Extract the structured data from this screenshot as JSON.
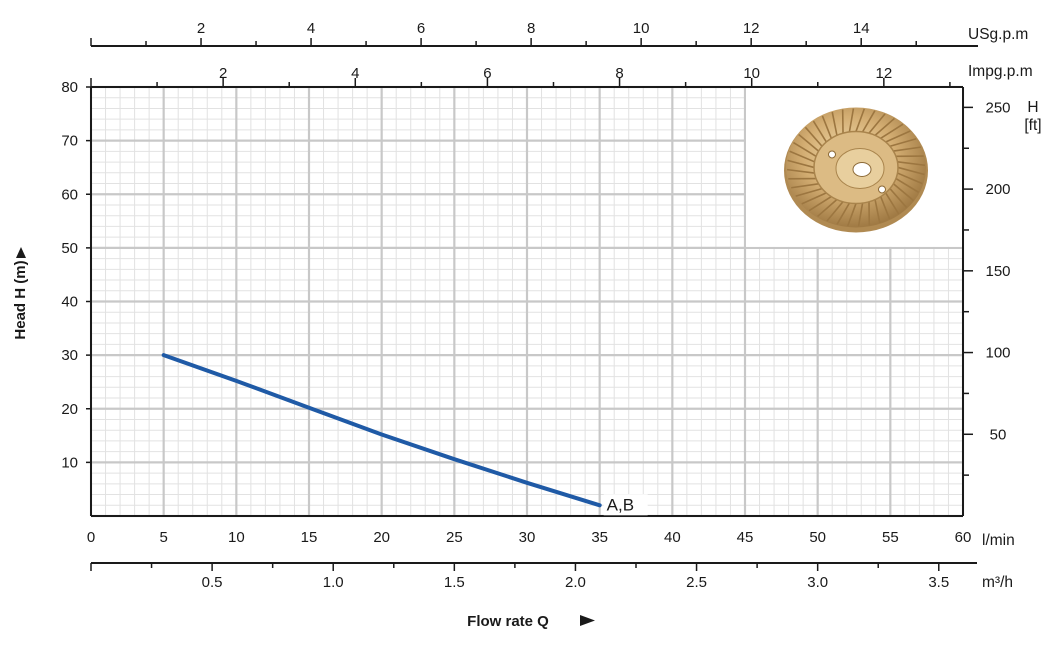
{
  "chart_data": {
    "type": "line",
    "xlabel": "Flow rate Q",
    "ylabel": "Head H (m)",
    "x_unit": "l/min",
    "xlim": [
      0,
      60
    ],
    "ylim": [
      0,
      80
    ],
    "x_ticks": [
      0,
      5,
      10,
      15,
      20,
      25,
      30,
      35,
      40,
      45,
      50,
      55,
      60
    ],
    "y_ticks": [
      10,
      20,
      30,
      40,
      50,
      60,
      70,
      80
    ],
    "grid": true,
    "series": [
      {
        "name": "A,B",
        "color": "#1f5aa6",
        "points": [
          {
            "x": 5,
            "y": 30
          },
          {
            "x": 10,
            "y": 25.2
          },
          {
            "x": 15,
            "y": 20.2
          },
          {
            "x": 20,
            "y": 15.2
          },
          {
            "x": 25,
            "y": 10.6
          },
          {
            "x": 30,
            "y": 6.2
          },
          {
            "x": 35,
            "y": 2
          }
        ]
      }
    ],
    "secondary_axes": {
      "m3h": {
        "label": "m³/h",
        "ticks": [
          "0.5",
          "1.0",
          "1.5",
          "2.0",
          "2.5",
          "3.0",
          "3.5"
        ],
        "values": [
          0.5,
          1.0,
          1.5,
          2.0,
          2.5,
          3.0,
          3.5
        ]
      },
      "usgpm": {
        "label": "USg.p.m",
        "ticks": [
          "2",
          "4",
          "6",
          "8",
          "10",
          "12",
          "14"
        ],
        "values": [
          2,
          4,
          6,
          8,
          10,
          12,
          14
        ]
      },
      "impgpm": {
        "label": "Impg.p.m",
        "ticks": [
          "2",
          "4",
          "6",
          "8",
          "10",
          "12"
        ],
        "values": [
          2,
          4,
          6,
          8,
          10,
          12
        ]
      },
      "ft": {
        "label_top": "H",
        "label_bottom": "[ft]",
        "ticks": [
          "50",
          "100",
          "150",
          "200",
          "250"
        ],
        "values": [
          50,
          100,
          150,
          200,
          250
        ]
      }
    },
    "inset_image": "impeller-photo",
    "colors": {
      "grid_major": "#c8c8c8",
      "grid_minor": "#e2e2e2",
      "axis": "#1a1a1a",
      "line": "#1f5aa6",
      "impeller": "#c9a46a"
    }
  }
}
